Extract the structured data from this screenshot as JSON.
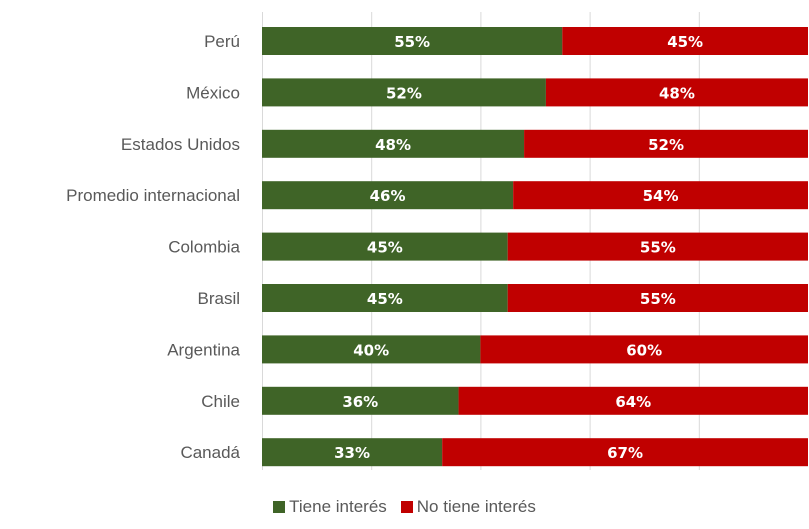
{
  "chart_data": {
    "type": "bar",
    "orientation": "horizontal",
    "stacked": "100%",
    "categories": [
      "Perú",
      "México",
      "Estados Unidos",
      "Promedio internacional",
      "Colombia",
      "Brasil",
      "Argentina",
      "Chile",
      "Canadá"
    ],
    "series": [
      {
        "name": "Tiene interés",
        "color": "#3f6427",
        "values": [
          55,
          52,
          48,
          46,
          45,
          45,
          40,
          36,
          33
        ],
        "labels": [
          "55%",
          "52%",
          "48%",
          "46%",
          "45%",
          "45%",
          "40%",
          "36%",
          "33%"
        ]
      },
      {
        "name": "No tiene interés",
        "color": "#c00000",
        "values": [
          45,
          48,
          52,
          54,
          55,
          55,
          60,
          64,
          67
        ],
        "labels": [
          "45%",
          "48%",
          "52%",
          "54%",
          "55%",
          "55%",
          "60%",
          "64%",
          "67%"
        ]
      }
    ],
    "xlim": [
      0,
      100
    ],
    "grid": true,
    "legend_position": "bottom"
  }
}
